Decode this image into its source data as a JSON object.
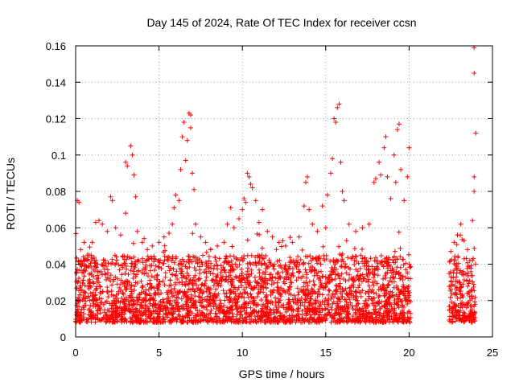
{
  "chart_data": {
    "type": "scatter",
    "title": "Day 145 of 2024, Rate Of TEC Index for receiver ccsn",
    "xlabel": "GPS time / hours",
    "ylabel": "ROTI / TECUs",
    "xlim": [
      0,
      25
    ],
    "ylim": [
      0,
      0.16
    ],
    "x_ticks": [
      {
        "value": 0,
        "label": "0"
      },
      {
        "value": 5,
        "label": "5"
      },
      {
        "value": 10,
        "label": "10"
      },
      {
        "value": 15,
        "label": "15"
      },
      {
        "value": 20,
        "label": "20"
      },
      {
        "value": 25,
        "label": "25"
      }
    ],
    "y_ticks": [
      {
        "value": 0,
        "label": "0"
      },
      {
        "value": 0.02,
        "label": "0.02"
      },
      {
        "value": 0.04,
        "label": "0.04"
      },
      {
        "value": 0.06,
        "label": "0.06"
      },
      {
        "value": 0.08,
        "label": "0.08"
      },
      {
        "value": 0.1,
        "label": "0.1"
      },
      {
        "value": 0.12,
        "label": "0.12"
      },
      {
        "value": 0.14,
        "label": "0.14"
      },
      {
        "value": 0.16,
        "label": "0.16"
      }
    ],
    "grid": true,
    "marker": "+",
    "series": [
      {
        "name": "ROTI",
        "color": "#ff0000",
        "points": [
          [
            0.1,
            0.075
          ],
          [
            0.2,
            0.074
          ],
          [
            0.3,
            0.048
          ],
          [
            0.5,
            0.042
          ],
          [
            0.8,
            0.045
          ],
          [
            1.0,
            0.052
          ],
          [
            1.2,
            0.063
          ],
          [
            1.4,
            0.064
          ],
          [
            1.6,
            0.062
          ],
          [
            1.9,
            0.058
          ],
          [
            2.1,
            0.077
          ],
          [
            2.2,
            0.075
          ],
          [
            2.4,
            0.06
          ],
          [
            2.7,
            0.056
          ],
          [
            3.0,
            0.068
          ],
          [
            3.0,
            0.096
          ],
          [
            3.1,
            0.094
          ],
          [
            3.3,
            0.105
          ],
          [
            3.4,
            0.1
          ],
          [
            3.5,
            0.089
          ],
          [
            3.6,
            0.077
          ],
          [
            3.7,
            0.058
          ],
          [
            4.0,
            0.052
          ],
          [
            4.3,
            0.048
          ],
          [
            4.6,
            0.05
          ],
          [
            5.0,
            0.052
          ],
          [
            5.3,
            0.055
          ],
          [
            5.6,
            0.057
          ],
          [
            5.8,
            0.062
          ],
          [
            5.9,
            0.071
          ],
          [
            6.0,
            0.078
          ],
          [
            6.2,
            0.075
          ],
          [
            6.3,
            0.092
          ],
          [
            6.4,
            0.11
          ],
          [
            6.5,
            0.118
          ],
          [
            6.6,
            0.097
          ],
          [
            6.7,
            0.108
          ],
          [
            6.8,
            0.123
          ],
          [
            6.9,
            0.122
          ],
          [
            6.9,
            0.115
          ],
          [
            7.0,
            0.09
          ],
          [
            7.1,
            0.081
          ],
          [
            7.2,
            0.062
          ],
          [
            7.5,
            0.055
          ],
          [
            7.8,
            0.052
          ],
          [
            8.1,
            0.048
          ],
          [
            8.5,
            0.05
          ],
          [
            8.9,
            0.052
          ],
          [
            9.1,
            0.062
          ],
          [
            9.3,
            0.071
          ],
          [
            9.5,
            0.06
          ],
          [
            9.8,
            0.065
          ],
          [
            10.0,
            0.07
          ],
          [
            10.1,
            0.076
          ],
          [
            10.2,
            0.074
          ],
          [
            10.3,
            0.09
          ],
          [
            10.4,
            0.088
          ],
          [
            10.5,
            0.084
          ],
          [
            10.6,
            0.082
          ],
          [
            10.8,
            0.075
          ],
          [
            11.0,
            0.063
          ],
          [
            11.2,
            0.07
          ],
          [
            11.5,
            0.058
          ],
          [
            11.8,
            0.055
          ],
          [
            12.2,
            0.052
          ],
          [
            12.6,
            0.05
          ],
          [
            13.0,
            0.052
          ],
          [
            13.4,
            0.055
          ],
          [
            13.7,
            0.072
          ],
          [
            13.8,
            0.085
          ],
          [
            13.9,
            0.088
          ],
          [
            14.0,
            0.07
          ],
          [
            14.2,
            0.062
          ],
          [
            14.5,
            0.058
          ],
          [
            14.8,
            0.072
          ],
          [
            15.0,
            0.06
          ],
          [
            15.1,
            0.078
          ],
          [
            15.3,
            0.09
          ],
          [
            15.4,
            0.098
          ],
          [
            15.5,
            0.12
          ],
          [
            15.6,
            0.118
          ],
          [
            15.7,
            0.126
          ],
          [
            15.8,
            0.128
          ],
          [
            15.9,
            0.096
          ],
          [
            16.0,
            0.08
          ],
          [
            16.1,
            0.075
          ],
          [
            16.4,
            0.062
          ],
          [
            16.8,
            0.058
          ],
          [
            17.2,
            0.06
          ],
          [
            17.6,
            0.062
          ],
          [
            17.9,
            0.085
          ],
          [
            18.0,
            0.087
          ],
          [
            18.2,
            0.096
          ],
          [
            18.3,
            0.089
          ],
          [
            18.5,
            0.104
          ],
          [
            18.6,
            0.11
          ],
          [
            18.7,
            0.088
          ],
          [
            18.9,
            0.076
          ],
          [
            19.1,
            0.1
          ],
          [
            19.2,
            0.085
          ],
          [
            19.3,
            0.114
          ],
          [
            19.4,
            0.117
          ],
          [
            19.5,
            0.092
          ],
          [
            19.7,
            0.075
          ],
          [
            19.9,
            0.088
          ],
          [
            20.0,
            0.104
          ],
          [
            22.5,
            0.047
          ],
          [
            22.7,
            0.052
          ],
          [
            22.9,
            0.056
          ],
          [
            23.1,
            0.062
          ],
          [
            23.3,
            0.053
          ],
          [
            23.5,
            0.048
          ],
          [
            23.8,
            0.064
          ],
          [
            23.9,
            0.08
          ],
          [
            23.9,
            0.088
          ],
          [
            24.0,
            0.112
          ],
          [
            23.9,
            0.145
          ],
          [
            23.9,
            0.159
          ]
        ]
      }
    ],
    "background_band": {
      "description": "dense scatter of ROTI values mostly between 0.005 and 0.045 TECUs",
      "segments": [
        [
          0,
          20.1
        ],
        [
          22.4,
          24.0
        ]
      ],
      "typical_range": [
        0.008,
        0.045
      ]
    }
  }
}
